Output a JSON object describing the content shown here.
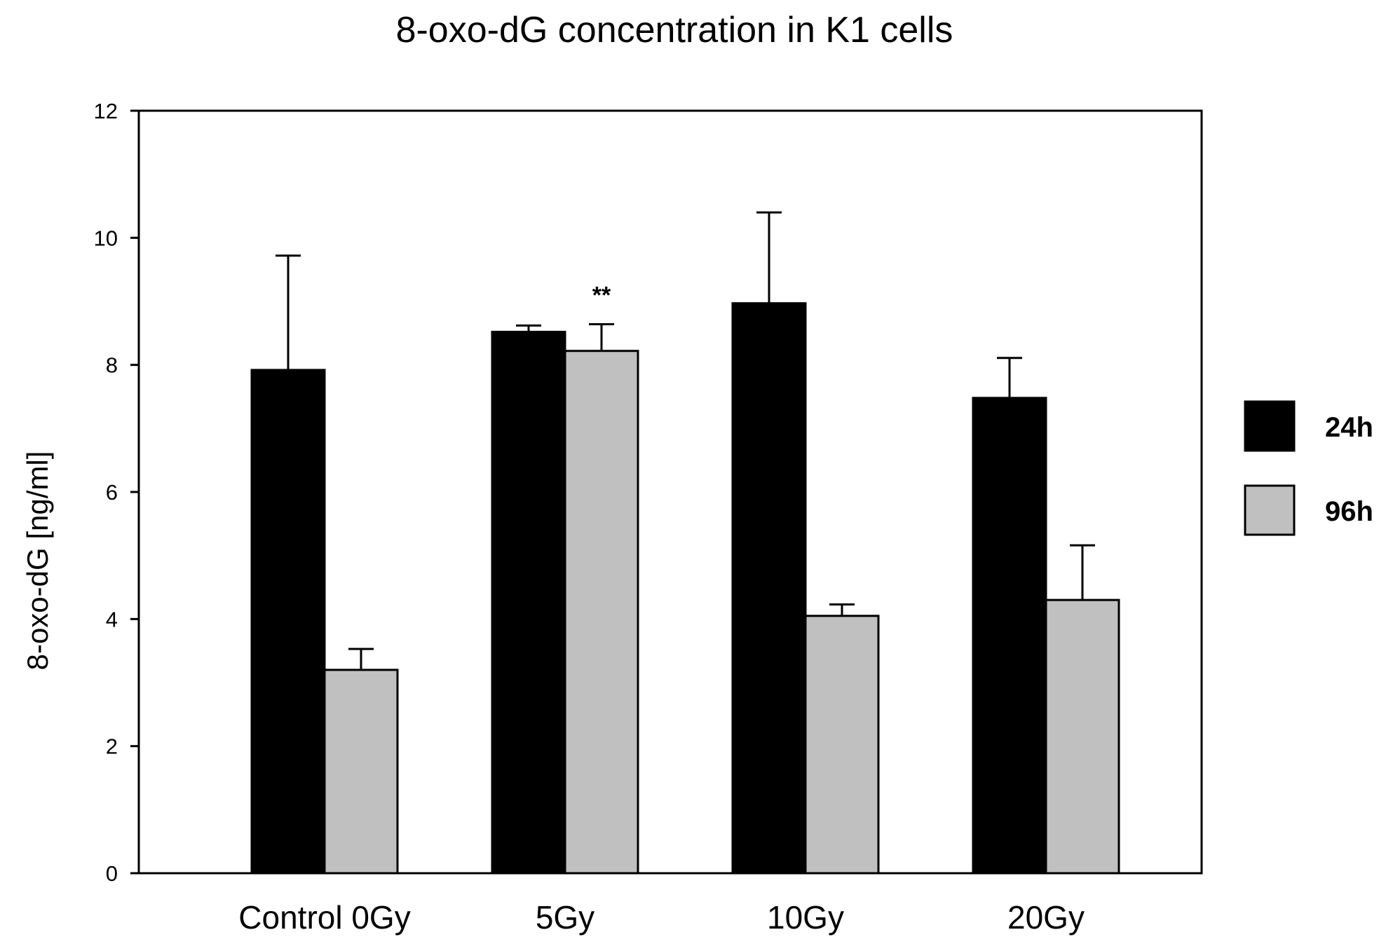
{
  "chart_data": {
    "type": "bar",
    "title": "8-oxo-dG concentration in K1 cells",
    "xlabel": "",
    "ylabel": "8-oxo-dG [ng/ml]",
    "ylim": [
      0,
      12
    ],
    "yticks": [
      "0",
      "2",
      "4",
      "6",
      "8",
      "10",
      "12"
    ],
    "categories": [
      "Control 0Gy",
      "5Gy",
      "10Gy",
      "20Gy"
    ],
    "series": [
      {
        "name": "24h",
        "color": "#000000",
        "values": [
          7.92,
          8.52,
          8.97,
          7.48
        ],
        "errors": [
          1.8,
          0.1,
          1.43,
          0.63
        ]
      },
      {
        "name": "96h",
        "color": "#c0c0c0",
        "values": [
          3.2,
          8.22,
          4.05,
          4.3
        ],
        "errors": [
          0.33,
          0.42,
          0.18,
          0.86
        ]
      }
    ],
    "annotations": [
      {
        "text": "**",
        "category": "5Gy",
        "series": "96h"
      }
    ],
    "legend_position": "right",
    "grid": false
  }
}
